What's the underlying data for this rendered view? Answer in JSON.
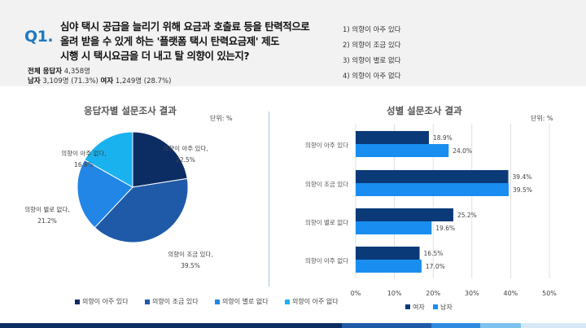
{
  "header": {
    "q_label": "Q1.",
    "question_lines": [
      "심야 택시 공급을 늘리기 위해 요금과 호출료 등을 탄력적으로",
      "올려 받을 수 있게 하는 '플랫폼 택시 탄력요금제' 제도",
      "시행 시 택시요금을 더 내고 탈 의향이 있는지?"
    ],
    "total_label": "전체 응답자",
    "total_value": "4,358명",
    "male_label": "남자",
    "male_value": "3,109명 (71.3%)",
    "female_label": "여자",
    "female_value": "1,249명 (28.7%)",
    "options": [
      "1) 의향이 아주 있다",
      "2) 의향이 조금 있다",
      "3) 의향이 별로 없다",
      "4) 의향이 아주 없다"
    ]
  },
  "pie_panel": {
    "title": "응답자별 설문조사 결과",
    "unit": "단위: %"
  },
  "bar_panel": {
    "title": "성별 설문조사 결과",
    "unit": "단위: %"
  },
  "chart_data": [
    {
      "type": "pie",
      "title": "응답자별 설문조사 결과",
      "unit": "단위: %",
      "labels": [
        "의향이 아주 있다",
        "의향이 조금 있다",
        "의향이 별로 없다",
        "의향이 아주 없다"
      ],
      "values": [
        22.5,
        39.5,
        21.2,
        16.8
      ],
      "data_labels": [
        "22.5%",
        "39.5%",
        "21.2%",
        "16.8%"
      ],
      "colors": [
        "#0b2d63",
        "#1e5aa8",
        "#2186e6",
        "#1ab2ee"
      ],
      "legend": [
        "의향이 아주 있다",
        "의향이 조금 있다",
        "의향이 별로 없다",
        "의향이 아주 없다"
      ],
      "legend_position": "bottom"
    },
    {
      "type": "bar",
      "orientation": "horizontal",
      "title": "성별 설문조사 결과",
      "unit": "단위: %",
      "categories": [
        "의향이 아주 있다",
        "의향이 조금 있다",
        "의향이 별로 없다",
        "의향이 아주 없다"
      ],
      "series": [
        {
          "name": "여자",
          "values": [
            18.9,
            39.4,
            25.2,
            16.5
          ],
          "labels": [
            "18.9%",
            "39.4%",
            "25.2%",
            "16.5%"
          ],
          "color": "#0b3a78"
        },
        {
          "name": "남자",
          "values": [
            24.0,
            39.5,
            19.6,
            17.0
          ],
          "labels": [
            "24.0%",
            "39.5%",
            "19.6%",
            "17.0%"
          ],
          "color": "#1a8ef0"
        }
      ],
      "xlim": [
        0,
        50
      ],
      "xticks": [
        "0%",
        "10%",
        "20%",
        "30%",
        "40%",
        "50%"
      ],
      "grid": true,
      "legend_position": "bottom"
    }
  ],
  "footer_colors": [
    "#0b2d63",
    "#1e5aa8",
    "#2f8be0",
    "#7ec2f0",
    "#d6e8f6"
  ]
}
